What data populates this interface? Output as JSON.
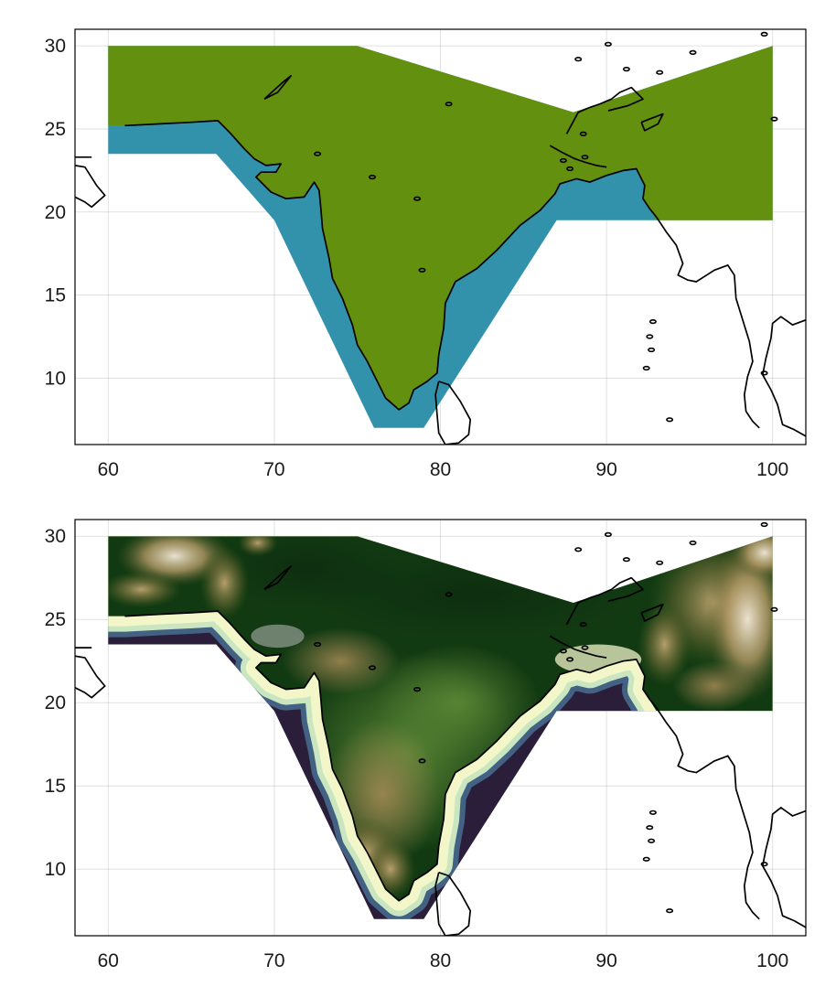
{
  "chart_data": [
    {
      "type": "map",
      "panel": "top",
      "xlim": [
        58,
        102
      ],
      "ylim": [
        6,
        31
      ],
      "x_ticks": [
        60,
        70,
        80,
        90,
        100
      ],
      "y_ticks": [
        10,
        15,
        20,
        25,
        30
      ],
      "x_tick_labels": [
        "60",
        "70",
        "80",
        "90",
        "100"
      ],
      "y_tick_labels": [
        "10",
        "15",
        "20",
        "25",
        "30"
      ],
      "grid": true,
      "legend": "none",
      "regions": [
        {
          "category": "ocean",
          "color": "#3392ab"
        },
        {
          "category": "land",
          "color": "#64900f"
        }
      ],
      "region_polygon": [
        [
          60,
          30
        ],
        [
          75,
          30
        ],
        [
          88,
          26
        ],
        [
          100,
          30
        ],
        [
          100,
          19.5
        ],
        [
          87,
          19.5
        ],
        [
          79,
          7
        ],
        [
          76,
          7
        ],
        [
          70,
          19.5
        ],
        [
          66.5,
          23.5
        ],
        [
          60,
          23.5
        ]
      ],
      "coastlines": true
    },
    {
      "type": "map",
      "panel": "bottom",
      "xlim": [
        58,
        102
      ],
      "ylim": [
        6,
        31
      ],
      "x_ticks": [
        60,
        70,
        80,
        90,
        100
      ],
      "y_ticks": [
        10,
        15,
        20,
        25,
        30
      ],
      "x_tick_labels": [
        "60",
        "70",
        "80",
        "90",
        "100"
      ],
      "y_tick_labels": [
        "10",
        "15",
        "20",
        "25",
        "30"
      ],
      "grid": true,
      "legend": "none",
      "colormap": "topography (deep navy ocean to pale yellow shallows, dark green lowlands to tan and white highlands)",
      "colors": {
        "deep": "#2a1e3a",
        "shallow": "#f2f6c8",
        "lowland": "#123a12",
        "plain": "#4d7a2a",
        "upland": "#a88a56",
        "peak": "#f3ead9"
      },
      "region_polygon": [
        [
          60,
          30
        ],
        [
          75,
          30
        ],
        [
          88,
          26
        ],
        [
          100,
          30
        ],
        [
          100,
          19.5
        ],
        [
          87,
          19.5
        ],
        [
          79,
          7
        ],
        [
          76,
          7
        ],
        [
          70,
          19.5
        ],
        [
          66.5,
          23.5
        ],
        [
          60,
          23.5
        ]
      ],
      "coastlines": true
    }
  ]
}
